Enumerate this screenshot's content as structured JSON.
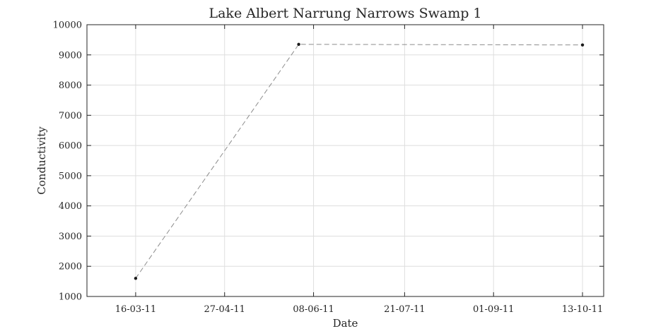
{
  "chart_data": {
    "type": "line",
    "title": "Lake Albert Narrung Narrows Swamp 1",
    "xlabel": "Date",
    "ylabel": "Conductivity",
    "x_tick_labels": [
      "16-03-11",
      "27-04-11",
      "08-06-11",
      "21-07-11",
      "01-09-11",
      "13-10-11"
    ],
    "x_tick_dates": [
      "2011-03-16",
      "2011-04-27",
      "2011-06-08",
      "2011-07-21",
      "2011-09-01",
      "2011-10-13"
    ],
    "xlim": [
      "2011-02-21",
      "2011-10-23"
    ],
    "y_ticks": [
      1000,
      2000,
      3000,
      4000,
      5000,
      6000,
      7000,
      8000,
      9000,
      10000
    ],
    "ylim": [
      1000,
      10000
    ],
    "grid": true,
    "series": [
      {
        "x": [
          "2011-03-16",
          "2011-06-01",
          "2011-10-13"
        ],
        "y": [
          1600,
          9350,
          9330
        ],
        "line_style": "dashed",
        "line_color": "#8c8c8c",
        "marker_color": "#1a1a1a"
      }
    ]
  }
}
